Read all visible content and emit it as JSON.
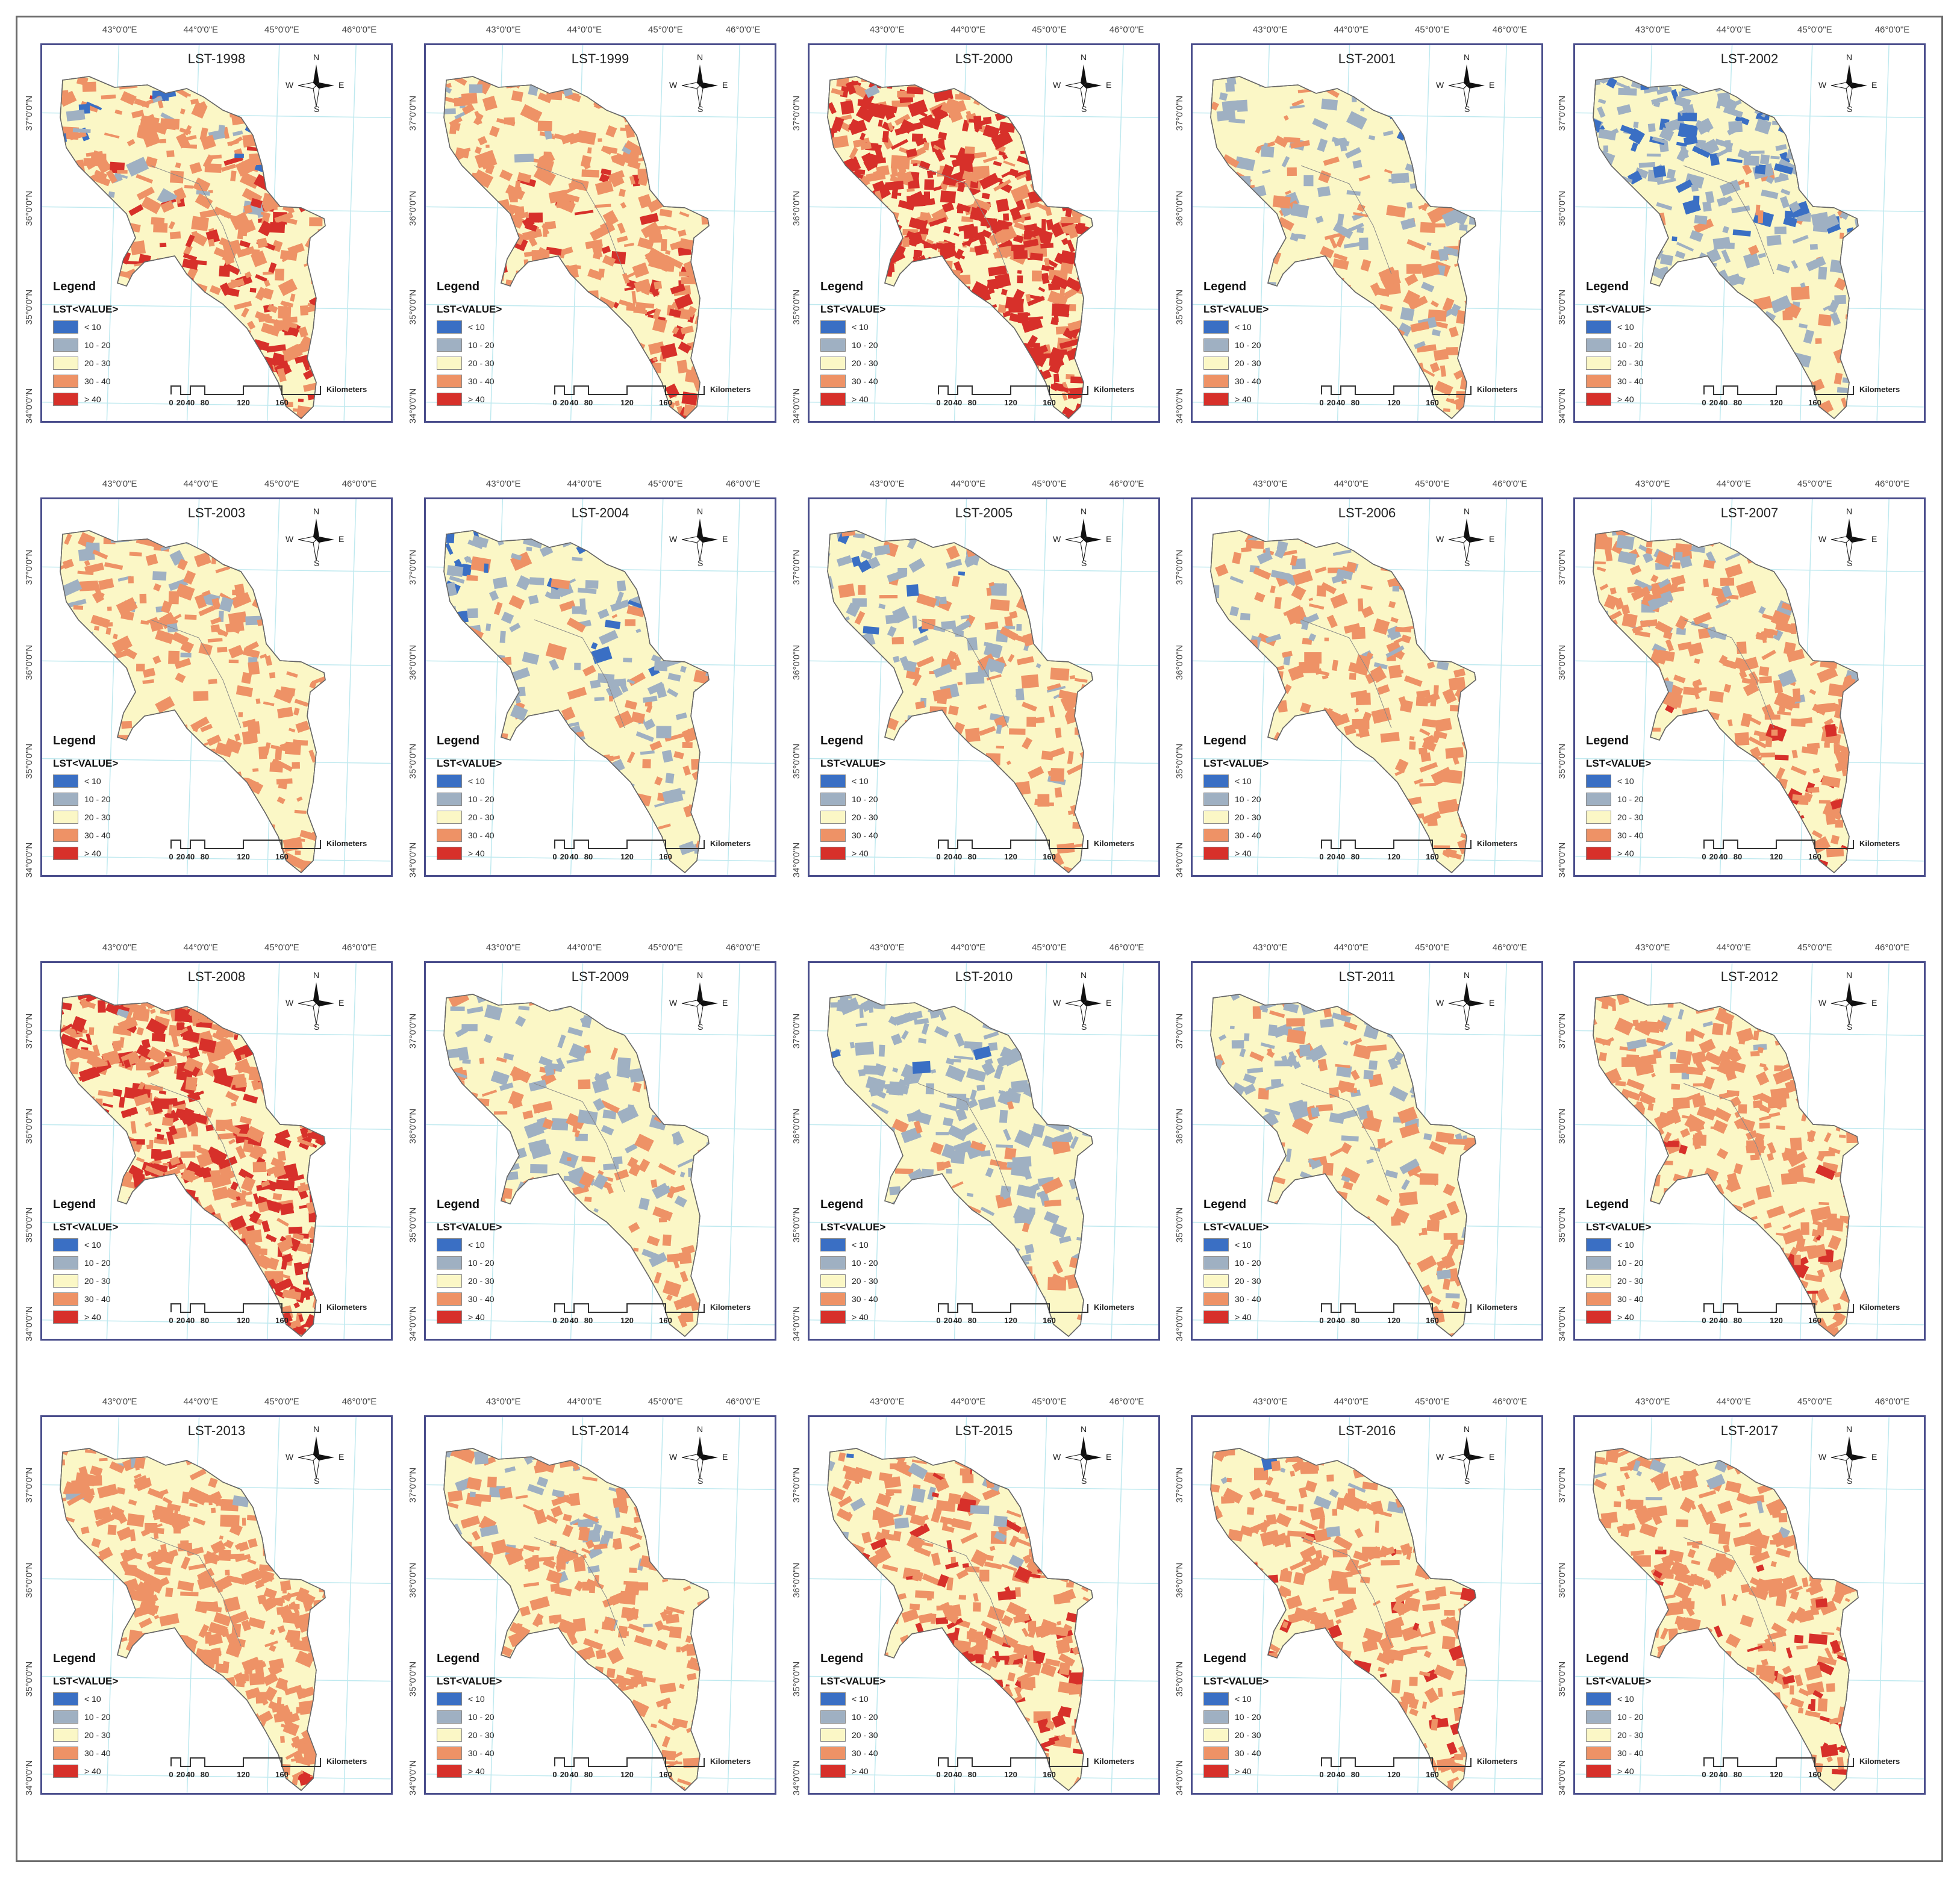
{
  "longitudes": [
    "43°0'0\"E",
    "44°0'0\"E",
    "45°0'0\"E",
    "46°0'0\"E"
  ],
  "latitudes": [
    "37°0'0\"N",
    "36°0'0\"N",
    "35°0'0\"N",
    "34°0'0\"N"
  ],
  "legend": {
    "title": "Legend",
    "subtitle": "LST<VALUE>",
    "classes": [
      {
        "label": "< 10",
        "color": "#3a6fc4"
      },
      {
        "label": "10 - 20",
        "color": "#9fb0c2"
      },
      {
        "label": "20 - 30",
        "color": "#fbf7c6"
      },
      {
        "label": "30 - 40",
        "color": "#ee9266"
      },
      {
        "label": "> 40",
        "color": "#d7302a"
      }
    ]
  },
  "scale": {
    "labels": [
      "0",
      "20",
      "40",
      "80",
      "120",
      "160"
    ],
    "unit": "Kilometers"
  },
  "compass": {
    "n": "N",
    "s": "S",
    "e": "E",
    "w": "W"
  },
  "panels": [
    {
      "title": "LST-1998",
      "mix": [
        0.08,
        0.05,
        0.3,
        0.32,
        0.25
      ]
    },
    {
      "title": "LST-1999",
      "mix": [
        0.03,
        0.05,
        0.32,
        0.4,
        0.2
      ]
    },
    {
      "title": "LST-2000",
      "mix": [
        0.02,
        0.02,
        0.04,
        0.27,
        0.65
      ]
    },
    {
      "title": "LST-2001",
      "mix": [
        0.05,
        0.2,
        0.45,
        0.3,
        0.0
      ]
    },
    {
      "title": "LST-2002",
      "mix": [
        0.15,
        0.25,
        0.4,
        0.2,
        0.0
      ]
    },
    {
      "title": "LST-2003",
      "mix": [
        0.02,
        0.1,
        0.43,
        0.45,
        0.0
      ]
    },
    {
      "title": "LST-2004",
      "mix": [
        0.12,
        0.18,
        0.45,
        0.25,
        0.0
      ]
    },
    {
      "title": "LST-2005",
      "mix": [
        0.08,
        0.15,
        0.47,
        0.3,
        0.0
      ]
    },
    {
      "title": "LST-2006",
      "mix": [
        0.02,
        0.1,
        0.48,
        0.4,
        0.0
      ]
    },
    {
      "title": "LST-2007",
      "mix": [
        0.02,
        0.12,
        0.36,
        0.35,
        0.15
      ]
    },
    {
      "title": "LST-2008",
      "mix": [
        0.01,
        0.02,
        0.07,
        0.4,
        0.5
      ]
    },
    {
      "title": "LST-2009",
      "mix": [
        0.03,
        0.22,
        0.45,
        0.27,
        0.03
      ]
    },
    {
      "title": "LST-2010",
      "mix": [
        0.06,
        0.3,
        0.44,
        0.2,
        0.0
      ]
    },
    {
      "title": "LST-2011",
      "mix": [
        0.04,
        0.2,
        0.46,
        0.3,
        0.0
      ]
    },
    {
      "title": "LST-2012",
      "mix": [
        0.02,
        0.05,
        0.38,
        0.4,
        0.15
      ]
    },
    {
      "title": "LST-2013",
      "mix": [
        0.01,
        0.04,
        0.3,
        0.6,
        0.05
      ]
    },
    {
      "title": "LST-2014",
      "mix": [
        0.03,
        0.12,
        0.4,
        0.45,
        0.0
      ]
    },
    {
      "title": "LST-2015",
      "mix": [
        0.03,
        0.07,
        0.3,
        0.35,
        0.25
      ]
    },
    {
      "title": "LST-2016",
      "mix": [
        0.02,
        0.06,
        0.37,
        0.35,
        0.2
      ]
    },
    {
      "title": "LST-2017",
      "mix": [
        0.02,
        0.06,
        0.37,
        0.35,
        0.2
      ]
    }
  ]
}
